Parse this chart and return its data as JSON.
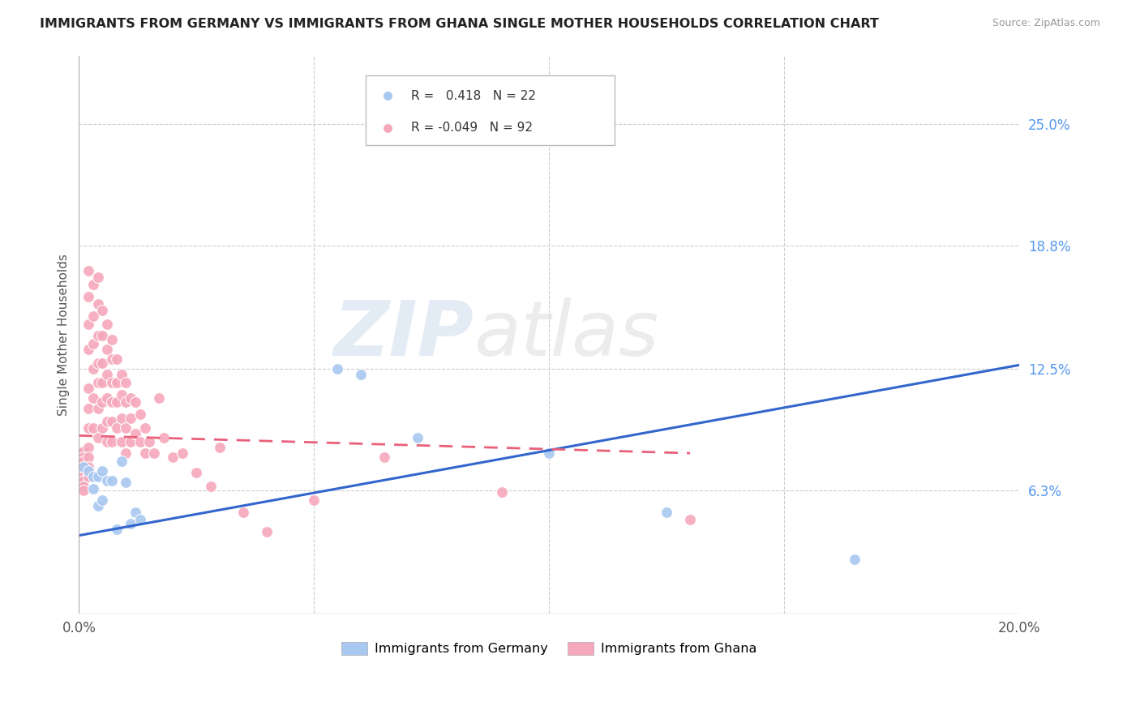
{
  "title": "IMMIGRANTS FROM GERMANY VS IMMIGRANTS FROM GHANA SINGLE MOTHER HOUSEHOLDS CORRELATION CHART",
  "source": "Source: ZipAtlas.com",
  "ylabel": "Single Mother Households",
  "right_yticks": [
    0.063,
    0.125,
    0.188,
    0.25
  ],
  "right_yticklabels": [
    "6.3%",
    "12.5%",
    "18.8%",
    "25.0%"
  ],
  "legend_blue_r": "0.418",
  "legend_blue_n": "22",
  "legend_pink_r": "-0.049",
  "legend_pink_n": "92",
  "blue_color": "#a8c8f0",
  "pink_color": "#f5a8bc",
  "blue_line_color": "#3366cc",
  "pink_line_color": "#e8607a",
  "xlim": [
    0.0,
    0.2
  ],
  "ylim": [
    0.0,
    0.285
  ],
  "blue_trend_x0": 0.0,
  "blue_trend_y0": 0.04,
  "blue_trend_x1": 0.2,
  "blue_trend_y1": 0.127,
  "pink_trend_x0": 0.0,
  "pink_trend_y0": 0.091,
  "pink_trend_x1": 0.13,
  "pink_trend_y1": 0.082,
  "blue_dots_x": [
    0.001,
    0.002,
    0.003,
    0.003,
    0.004,
    0.004,
    0.005,
    0.005,
    0.006,
    0.007,
    0.008,
    0.009,
    0.01,
    0.011,
    0.012,
    0.013,
    0.055,
    0.06,
    0.072,
    0.1,
    0.125,
    0.165
  ],
  "blue_dots_y": [
    0.075,
    0.073,
    0.07,
    0.064,
    0.07,
    0.055,
    0.073,
    0.058,
    0.068,
    0.068,
    0.043,
    0.078,
    0.067,
    0.046,
    0.052,
    0.048,
    0.125,
    0.122,
    0.09,
    0.082,
    0.052,
    0.028
  ],
  "pink_dots_x": [
    0.001,
    0.001,
    0.001,
    0.001,
    0.001,
    0.001,
    0.001,
    0.001,
    0.001,
    0.001,
    0.001,
    0.001,
    0.001,
    0.002,
    0.002,
    0.002,
    0.002,
    0.002,
    0.002,
    0.002,
    0.002,
    0.002,
    0.002,
    0.002,
    0.002,
    0.003,
    0.003,
    0.003,
    0.003,
    0.003,
    0.003,
    0.004,
    0.004,
    0.004,
    0.004,
    0.004,
    0.004,
    0.004,
    0.005,
    0.005,
    0.005,
    0.005,
    0.005,
    0.005,
    0.006,
    0.006,
    0.006,
    0.006,
    0.006,
    0.006,
    0.007,
    0.007,
    0.007,
    0.007,
    0.007,
    0.007,
    0.008,
    0.008,
    0.008,
    0.008,
    0.009,
    0.009,
    0.009,
    0.009,
    0.01,
    0.01,
    0.01,
    0.01,
    0.011,
    0.011,
    0.011,
    0.012,
    0.012,
    0.013,
    0.013,
    0.014,
    0.014,
    0.015,
    0.016,
    0.017,
    0.018,
    0.02,
    0.022,
    0.025,
    0.028,
    0.03,
    0.035,
    0.04,
    0.05,
    0.065,
    0.09,
    0.13
  ],
  "pink_dots_y": [
    0.078,
    0.082,
    0.083,
    0.083,
    0.08,
    0.078,
    0.075,
    0.073,
    0.072,
    0.07,
    0.068,
    0.065,
    0.063,
    0.175,
    0.162,
    0.148,
    0.135,
    0.115,
    0.105,
    0.095,
    0.085,
    0.08,
    0.075,
    0.072,
    0.07,
    0.168,
    0.152,
    0.138,
    0.125,
    0.11,
    0.095,
    0.172,
    0.158,
    0.142,
    0.128,
    0.118,
    0.105,
    0.09,
    0.155,
    0.142,
    0.128,
    0.118,
    0.108,
    0.095,
    0.148,
    0.135,
    0.122,
    0.11,
    0.098,
    0.088,
    0.14,
    0.13,
    0.118,
    0.108,
    0.098,
    0.088,
    0.13,
    0.118,
    0.108,
    0.095,
    0.122,
    0.112,
    0.1,
    0.088,
    0.118,
    0.108,
    0.095,
    0.082,
    0.11,
    0.1,
    0.088,
    0.108,
    0.092,
    0.102,
    0.088,
    0.095,
    0.082,
    0.088,
    0.082,
    0.11,
    0.09,
    0.08,
    0.082,
    0.072,
    0.065,
    0.085,
    0.052,
    0.042,
    0.058,
    0.08,
    0.062,
    0.048
  ]
}
